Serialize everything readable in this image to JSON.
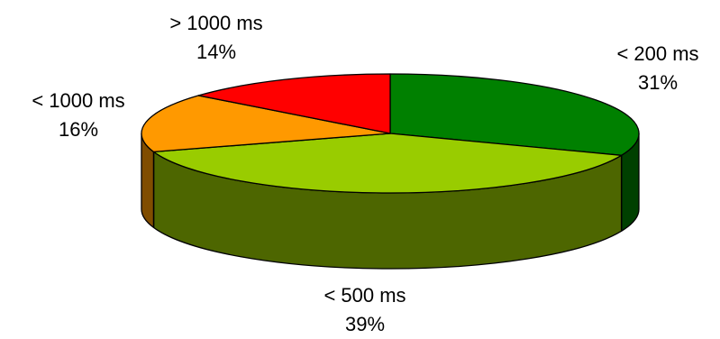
{
  "chart_data": {
    "type": "pie",
    "style": "3d",
    "slices": [
      {
        "label": "< 200 ms",
        "value": 31,
        "percent_label": "31%",
        "color": "#008000",
        "side_color": "#004000"
      },
      {
        "label": "< 500 ms",
        "value": 39,
        "percent_label": "39%",
        "color": "#99cc00",
        "side_color": "#4d6600"
      },
      {
        "label": "< 1000 ms",
        "value": 16,
        "percent_label": "16%",
        "color": "#ff9900",
        "side_color": "#804d00"
      },
      {
        "label": "> 1000 ms",
        "value": 14,
        "percent_label": "14%",
        "color": "#ff0000",
        "side_color": "#800000"
      }
    ],
    "start": "12 o'clock",
    "direction": "clockwise",
    "legend": "none",
    "title": ""
  }
}
